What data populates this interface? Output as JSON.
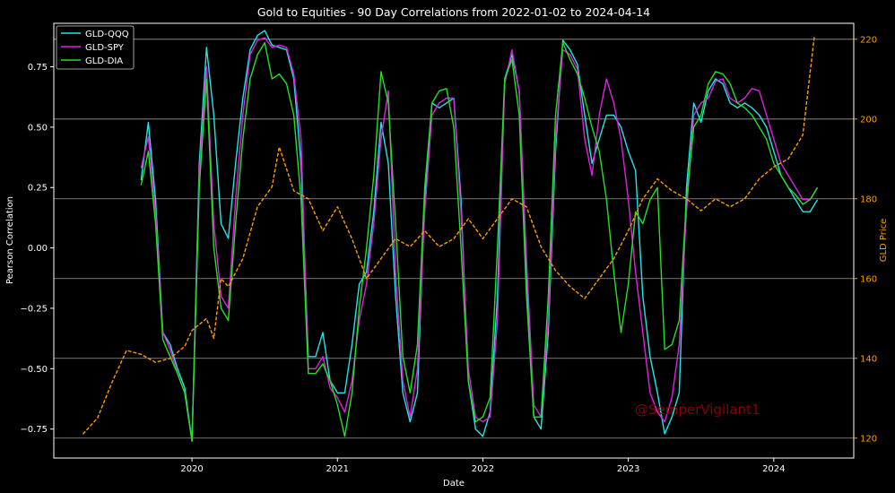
{
  "chart_data": {
    "type": "line",
    "title": "Gold to Equities - 90 Day Correlations from 2022-01-02 to 2024-04-14",
    "xlabel": "Date",
    "ylabel": "Pearson Correlation",
    "y2label": "GLD Price",
    "xlim": [
      2019.05,
      2024.55
    ],
    "ylim": [
      -0.87,
      0.93
    ],
    "y2lim": [
      115,
      224
    ],
    "x_ticks": [
      2020,
      2021,
      2022,
      2023,
      2024
    ],
    "x_tick_labels": [
      "2020",
      "2021",
      "2022",
      "2023",
      "2024"
    ],
    "y_ticks": [
      -0.75,
      -0.5,
      -0.25,
      0.0,
      0.25,
      0.5,
      0.75
    ],
    "y_tick_labels": [
      "−0.75",
      "−0.50",
      "−0.25",
      "0.00",
      "0.25",
      "0.50",
      "0.75"
    ],
    "y2_ticks": [
      120,
      140,
      160,
      180,
      200,
      220
    ],
    "y2_tick_labels": [
      "120",
      "140",
      "160",
      "180",
      "200",
      "220"
    ],
    "grid": "horizontal lines at right-axis ticks",
    "legend": "top-left",
    "annotation": "@SemperVigilant1",
    "colors": {
      "background": "#000000",
      "text": "#ffffff",
      "gld_axis": "#ff9d00",
      "grid": "#9a9a9a",
      "annotation": "#8b0000"
    },
    "series": [
      {
        "name": "GLD-QQQ",
        "axis": "left",
        "color": "#22e5e5",
        "style": "solid",
        "x": [
          2019.65,
          2019.7,
          2019.75,
          2019.8,
          2019.85,
          2019.9,
          2019.95,
          2020.0,
          2020.05,
          2020.1,
          2020.15,
          2020.2,
          2020.25,
          2020.3,
          2020.35,
          2020.4,
          2020.45,
          2020.5,
          2020.55,
          2020.6,
          2020.65,
          2020.7,
          2020.75,
          2020.8,
          2020.85,
          2020.9,
          2020.95,
          2021.0,
          2021.05,
          2021.1,
          2021.15,
          2021.2,
          2021.25,
          2021.3,
          2021.35,
          2021.4,
          2021.45,
          2021.5,
          2021.55,
          2021.6,
          2021.65,
          2021.7,
          2021.75,
          2021.8,
          2021.85,
          2021.9,
          2021.95,
          2022.0,
          2022.05,
          2022.1,
          2022.15,
          2022.2,
          2022.25,
          2022.3,
          2022.35,
          2022.4,
          2022.45,
          2022.5,
          2022.55,
          2022.6,
          2022.65,
          2022.7,
          2022.75,
          2022.8,
          2022.85,
          2022.9,
          2022.95,
          2023.0,
          2023.05,
          2023.1,
          2023.15,
          2023.2,
          2023.25,
          2023.3,
          2023.35,
          2023.4,
          2023.45,
          2023.5,
          2023.55,
          2023.6,
          2023.65,
          2023.7,
          2023.75,
          2023.8,
          2023.85,
          2023.9,
          2023.95,
          2024.0,
          2024.05,
          2024.1,
          2024.15,
          2024.2,
          2024.25,
          2024.3
        ],
        "values": [
          0.28,
          0.52,
          0.2,
          -0.35,
          -0.4,
          -0.5,
          -0.58,
          -0.8,
          0.35,
          0.83,
          0.55,
          0.1,
          0.04,
          0.35,
          0.62,
          0.82,
          0.88,
          0.9,
          0.84,
          0.83,
          0.82,
          0.7,
          0.35,
          -0.45,
          -0.45,
          -0.35,
          -0.55,
          -0.6,
          -0.6,
          -0.4,
          -0.15,
          -0.1,
          0.15,
          0.52,
          0.35,
          -0.2,
          -0.6,
          -0.72,
          -0.6,
          0.2,
          0.6,
          0.58,
          0.6,
          0.62,
          0.2,
          -0.55,
          -0.75,
          -0.78,
          -0.68,
          -0.2,
          0.7,
          0.8,
          0.65,
          -0.1,
          -0.7,
          -0.75,
          -0.35,
          0.4,
          0.86,
          0.82,
          0.76,
          0.55,
          0.35,
          0.45,
          0.55,
          0.55,
          0.5,
          0.4,
          0.32,
          -0.2,
          -0.45,
          -0.6,
          -0.77,
          -0.7,
          -0.6,
          0.25,
          0.6,
          0.52,
          0.65,
          0.7,
          0.68,
          0.6,
          0.58,
          0.6,
          0.58,
          0.55,
          0.5,
          0.4,
          0.3,
          0.25,
          0.2,
          0.15,
          0.15,
          0.2
        ]
      },
      {
        "name": "GLD-SPY",
        "axis": "left",
        "color": "#e020e0",
        "style": "solid",
        "x": [
          2019.65,
          2019.7,
          2019.75,
          2019.8,
          2019.85,
          2019.9,
          2019.95,
          2020.0,
          2020.05,
          2020.1,
          2020.15,
          2020.2,
          2020.25,
          2020.3,
          2020.35,
          2020.4,
          2020.45,
          2020.5,
          2020.55,
          2020.6,
          2020.65,
          2020.7,
          2020.75,
          2020.8,
          2020.85,
          2020.9,
          2020.95,
          2021.0,
          2021.05,
          2021.1,
          2021.15,
          2021.2,
          2021.25,
          2021.3,
          2021.35,
          2021.4,
          2021.45,
          2021.5,
          2021.55,
          2021.6,
          2021.65,
          2021.7,
          2021.75,
          2021.8,
          2021.85,
          2021.9,
          2021.95,
          2022.0,
          2022.05,
          2022.1,
          2022.15,
          2022.2,
          2022.25,
          2022.3,
          2022.35,
          2022.4,
          2022.45,
          2022.5,
          2022.55,
          2022.6,
          2022.65,
          2022.7,
          2022.75,
          2022.8,
          2022.85,
          2022.9,
          2022.95,
          2023.0,
          2023.05,
          2023.1,
          2023.15,
          2023.2,
          2023.25,
          2023.3,
          2023.35,
          2023.4,
          2023.45,
          2023.5,
          2023.55,
          2023.6,
          2023.65,
          2023.7,
          2023.75,
          2023.8,
          2023.85,
          2023.9,
          2023.95,
          2024.0,
          2024.05,
          2024.1,
          2024.15,
          2024.2,
          2024.25,
          2024.3
        ],
        "values": [
          0.33,
          0.46,
          0.15,
          -0.35,
          -0.42,
          -0.52,
          -0.6,
          -0.8,
          0.3,
          0.75,
          0.1,
          -0.2,
          -0.25,
          0.2,
          0.55,
          0.8,
          0.86,
          0.87,
          0.83,
          0.84,
          0.83,
          0.72,
          0.45,
          -0.5,
          -0.5,
          -0.45,
          -0.58,
          -0.62,
          -0.68,
          -0.55,
          -0.3,
          -0.15,
          0.1,
          0.45,
          0.65,
          -0.1,
          -0.55,
          -0.7,
          -0.5,
          0.15,
          0.55,
          0.6,
          0.62,
          0.62,
          0.15,
          -0.5,
          -0.7,
          -0.72,
          -0.7,
          -0.3,
          0.68,
          0.82,
          0.65,
          -0.05,
          -0.65,
          -0.7,
          -0.3,
          0.45,
          0.82,
          0.8,
          0.74,
          0.45,
          0.3,
          0.55,
          0.7,
          0.6,
          0.45,
          0.2,
          -0.1,
          -0.35,
          -0.6,
          -0.68,
          -0.72,
          -0.62,
          -0.4,
          0.15,
          0.55,
          0.6,
          0.62,
          0.69,
          0.7,
          0.62,
          0.6,
          0.62,
          0.66,
          0.65,
          0.55,
          0.45,
          0.35,
          0.3,
          0.25,
          0.2,
          0.2,
          0.25
        ]
      },
      {
        "name": "GLD-DIA",
        "axis": "left",
        "color": "#22e022",
        "style": "solid",
        "x": [
          2019.65,
          2019.7,
          2019.75,
          2019.8,
          2019.85,
          2019.9,
          2019.95,
          2020.0,
          2020.05,
          2020.1,
          2020.15,
          2020.2,
          2020.25,
          2020.3,
          2020.35,
          2020.4,
          2020.45,
          2020.5,
          2020.55,
          2020.6,
          2020.65,
          2020.7,
          2020.75,
          2020.8,
          2020.85,
          2020.9,
          2020.95,
          2021.0,
          2021.05,
          2021.1,
          2021.15,
          2021.2,
          2021.25,
          2021.3,
          2021.35,
          2021.4,
          2021.45,
          2021.5,
          2021.55,
          2021.6,
          2021.65,
          2021.7,
          2021.75,
          2021.8,
          2021.85,
          2021.9,
          2021.95,
          2022.0,
          2022.05,
          2022.1,
          2022.15,
          2022.2,
          2022.25,
          2022.3,
          2022.35,
          2022.4,
          2022.45,
          2022.5,
          2022.55,
          2022.6,
          2022.65,
          2022.7,
          2022.75,
          2022.8,
          2022.85,
          2022.9,
          2022.95,
          2023.0,
          2023.05,
          2023.1,
          2023.15,
          2023.2,
          2023.25,
          2023.3,
          2023.35,
          2023.4,
          2023.45,
          2023.5,
          2023.55,
          2023.6,
          2023.65,
          2023.7,
          2023.75,
          2023.8,
          2023.85,
          2023.9,
          2023.95,
          2024.0,
          2024.05,
          2024.1,
          2024.15,
          2024.2,
          2024.25,
          2024.3
        ],
        "values": [
          0.26,
          0.4,
          0.1,
          -0.38,
          -0.45,
          -0.52,
          -0.6,
          -0.8,
          0.25,
          0.7,
          0.0,
          -0.25,
          -0.3,
          0.1,
          0.45,
          0.7,
          0.8,
          0.85,
          0.7,
          0.72,
          0.68,
          0.55,
          0.2,
          -0.52,
          -0.52,
          -0.48,
          -0.55,
          -0.65,
          -0.78,
          -0.6,
          -0.25,
          0.0,
          0.3,
          0.73,
          0.6,
          0.1,
          -0.45,
          -0.6,
          -0.4,
          0.25,
          0.6,
          0.65,
          0.66,
          0.5,
          0.0,
          -0.55,
          -0.72,
          -0.7,
          -0.62,
          0.0,
          0.7,
          0.78,
          0.55,
          -0.2,
          -0.7,
          -0.7,
          -0.2,
          0.55,
          0.85,
          0.78,
          0.72,
          0.62,
          0.5,
          0.4,
          0.2,
          -0.1,
          -0.35,
          -0.15,
          0.15,
          0.1,
          0.2,
          0.25,
          -0.42,
          -0.4,
          -0.3,
          0.2,
          0.5,
          0.55,
          0.68,
          0.73,
          0.72,
          0.68,
          0.6,
          0.58,
          0.55,
          0.5,
          0.45,
          0.35,
          0.3,
          0.25,
          0.22,
          0.18,
          0.2,
          0.25
        ]
      },
      {
        "name": "GLD",
        "axis": "right",
        "color": "#ff9d00",
        "style": "dashed",
        "x": [
          2019.25,
          2019.35,
          2019.45,
          2019.55,
          2019.65,
          2019.75,
          2019.85,
          2019.95,
          2020.0,
          2020.1,
          2020.15,
          2020.2,
          2020.25,
          2020.35,
          2020.45,
          2020.55,
          2020.6,
          2020.7,
          2020.8,
          2020.9,
          2021.0,
          2021.1,
          2021.2,
          2021.3,
          2021.4,
          2021.5,
          2021.6,
          2021.7,
          2021.8,
          2021.9,
          2022.0,
          2022.1,
          2022.2,
          2022.3,
          2022.4,
          2022.5,
          2022.6,
          2022.7,
          2022.8,
          2022.9,
          2023.0,
          2023.1,
          2023.2,
          2023.3,
          2023.4,
          2023.5,
          2023.6,
          2023.7,
          2023.8,
          2023.9,
          2024.0,
          2024.1,
          2024.2,
          2024.28
        ],
        "values": [
          121,
          125,
          134,
          142,
          141,
          139,
          140,
          143,
          147,
          150,
          145,
          160,
          158,
          165,
          178,
          183,
          193,
          182,
          180,
          172,
          178,
          170,
          160,
          165,
          170,
          168,
          172,
          168,
          170,
          175,
          170,
          175,
          180,
          178,
          168,
          162,
          158,
          155,
          160,
          165,
          172,
          180,
          185,
          182,
          180,
          177,
          180,
          178,
          180,
          185,
          188,
          190,
          196,
          221
        ]
      }
    ]
  }
}
